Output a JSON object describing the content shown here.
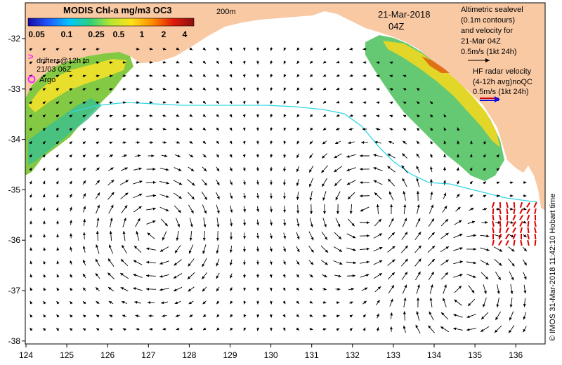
{
  "colorbar": {
    "title": "MODIS Chl-a mg/m3 OC3",
    "ticks": [
      "0.05",
      "0.1",
      "0.25",
      "0.5",
      "1",
      "2",
      "4"
    ],
    "stops": [
      "#1a0aa5",
      "#1e5cff",
      "#00c8ff",
      "#2ed07a",
      "#b8e62c",
      "#ffe11a",
      "#ff8a00",
      "#e01b0b",
      "#8c0f0f"
    ]
  },
  "contour_label": "200m",
  "date": "21-Mar-2018",
  "time": "04Z",
  "legend": {
    "drifters": [
      "drifters@12h to",
      "21/03 06Z"
    ],
    "argo": "Argo",
    "altimetry": [
      "Altimetric sealevel",
      "(0.1m contours)",
      "and velocity for",
      "21-Mar 04Z",
      "0.5m/s (1kt 24h)"
    ],
    "hf_radar": [
      "HF radar velocity",
      "(4-12h avg)noQC",
      "0.5m/s (1kt 24h)"
    ]
  },
  "credit": "© IMOS 31-Mar-2018 11:42:10 Hobart time",
  "axes": {
    "x_ticks": [
      "124",
      "125",
      "126",
      "127",
      "128",
      "129",
      "130",
      "131",
      "132",
      "133",
      "134",
      "135",
      "136"
    ],
    "y_ticks": [
      "-32",
      "-33",
      "-34",
      "-35",
      "-36",
      "-37",
      "-38"
    ]
  },
  "colors": {
    "land": "#f9c9a4",
    "ocean": "#ffffff",
    "shelf_contour": "#33d6e6",
    "argo": "#ff22ff",
    "hf_radar": "#e00000"
  }
}
